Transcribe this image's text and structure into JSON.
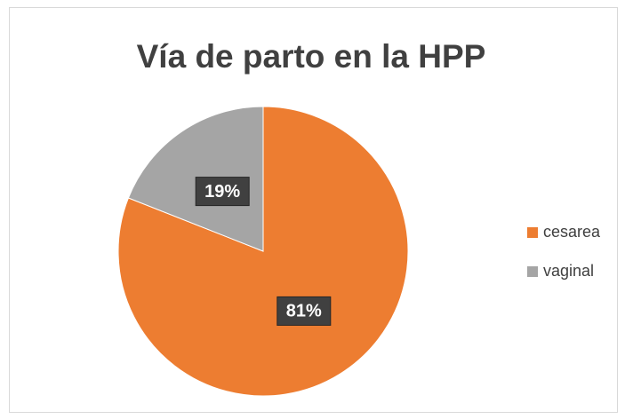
{
  "chart_data": {
    "type": "pie",
    "title": "Vía de parto en la HPP",
    "categories": [
      "cesarea",
      "vaginal"
    ],
    "values": [
      81,
      19
    ],
    "value_labels": [
      "81%",
      "19%"
    ],
    "colors": [
      "#ED7D31",
      "#A5A5A5"
    ],
    "legend": "right"
  }
}
